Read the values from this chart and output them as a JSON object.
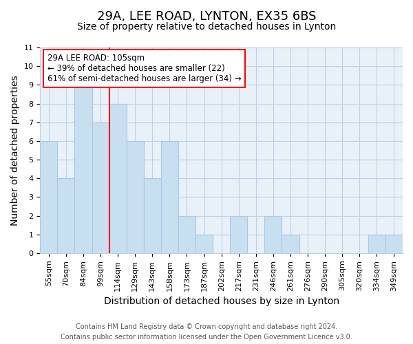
{
  "title": "29A, LEE ROAD, LYNTON, EX35 6BS",
  "subtitle": "Size of property relative to detached houses in Lynton",
  "xlabel": "Distribution of detached houses by size in Lynton",
  "ylabel": "Number of detached properties",
  "bin_labels": [
    "55sqm",
    "70sqm",
    "84sqm",
    "99sqm",
    "114sqm",
    "129sqm",
    "143sqm",
    "158sqm",
    "173sqm",
    "187sqm",
    "202sqm",
    "217sqm",
    "231sqm",
    "246sqm",
    "261sqm",
    "276sqm",
    "290sqm",
    "305sqm",
    "320sqm",
    "334sqm",
    "349sqm"
  ],
  "bar_values": [
    6,
    4,
    9,
    7,
    8,
    6,
    4,
    6,
    2,
    1,
    0,
    2,
    0,
    2,
    1,
    0,
    0,
    0,
    0,
    1,
    1
  ],
  "bar_color": "#c8dff0",
  "bar_edge_color": "#aac8e8",
  "ylim": [
    0,
    11
  ],
  "yticks": [
    0,
    1,
    2,
    3,
    4,
    5,
    6,
    7,
    8,
    9,
    10,
    11
  ],
  "red_line_x": 3.5,
  "annotation_text": "29A LEE ROAD: 105sqm\n← 39% of detached houses are smaller (22)\n61% of semi-detached houses are larger (34) →",
  "footer_line1": "Contains HM Land Registry data © Crown copyright and database right 2024.",
  "footer_line2": "Contains public sector information licensed under the Open Government Licence v3.0.",
  "background_color": "#ffffff",
  "plot_bg_color": "#e8f0f8",
  "grid_color": "#c0d0e8",
  "title_fontsize": 13,
  "subtitle_fontsize": 10,
  "axis_label_fontsize": 10,
  "tick_fontsize": 8,
  "footer_fontsize": 7,
  "annotation_fontsize": 8.5
}
